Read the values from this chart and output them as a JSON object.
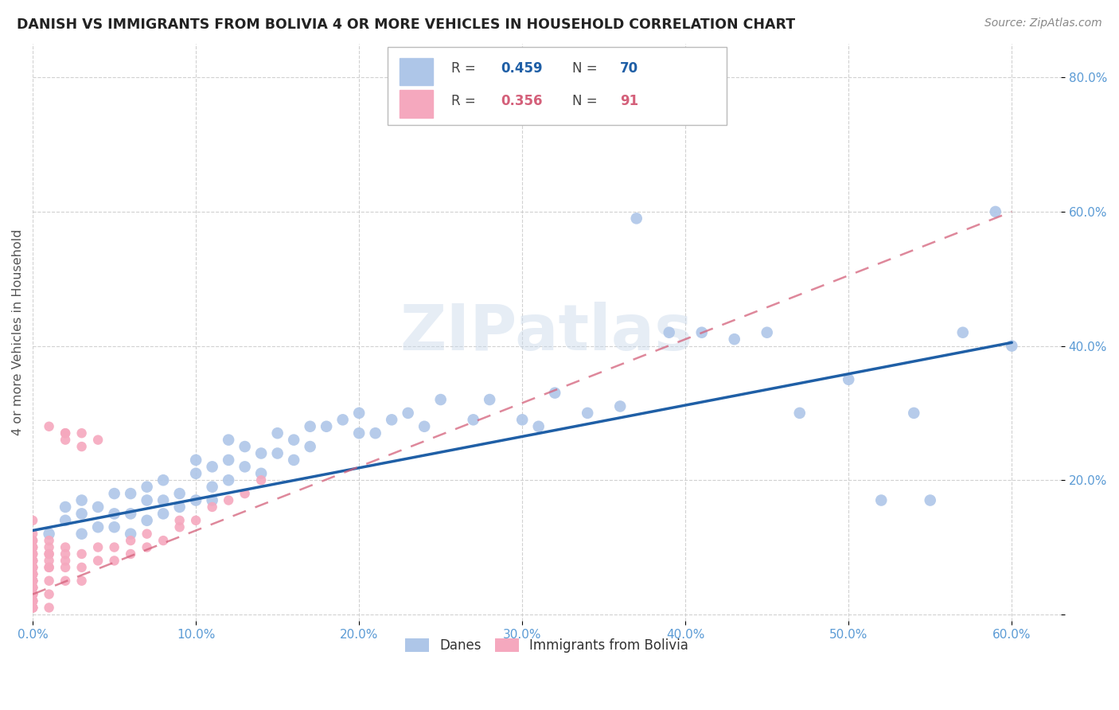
{
  "title": "DANISH VS IMMIGRANTS FROM BOLIVIA 4 OR MORE VEHICLES IN HOUSEHOLD CORRELATION CHART",
  "source": "Source: ZipAtlas.com",
  "ylabel": "4 or more Vehicles in Household",
  "xlim": [
    0.0,
    0.63
  ],
  "ylim": [
    -0.01,
    0.85
  ],
  "xticks": [
    0.0,
    0.1,
    0.2,
    0.3,
    0.4,
    0.5,
    0.6
  ],
  "yticks": [
    0.0,
    0.2,
    0.4,
    0.6,
    0.8
  ],
  "xtick_labels": [
    "0.0%",
    "10.0%",
    "20.0%",
    "30.0%",
    "40.0%",
    "50.0%",
    "60.0%"
  ],
  "ytick_labels": [
    "",
    "20.0%",
    "40.0%",
    "60.0%",
    "80.0%"
  ],
  "danish_color": "#aec6e8",
  "bolivia_color": "#f5a8be",
  "danish_line_color": "#1f5fa6",
  "bolivia_line_color": "#d4607a",
  "danish_R": 0.459,
  "danish_N": 70,
  "bolivia_R": 0.356,
  "bolivia_N": 91,
  "legend_label_danish": "Danes",
  "legend_label_bolivia": "Immigrants from Bolivia",
  "background_color": "#ffffff",
  "grid_color": "#cccccc",
  "watermark": "ZIPatlas",
  "danish_line_x0": 0.0,
  "danish_line_x1": 0.6,
  "danish_line_y0": 0.125,
  "danish_line_y1": 0.405,
  "bolivia_line_x0": 0.0,
  "bolivia_line_x1": 0.6,
  "bolivia_line_y0": 0.03,
  "bolivia_line_y1": 0.6,
  "danish_x": [
    0.01,
    0.02,
    0.02,
    0.03,
    0.03,
    0.03,
    0.04,
    0.04,
    0.05,
    0.05,
    0.05,
    0.06,
    0.06,
    0.06,
    0.07,
    0.07,
    0.07,
    0.08,
    0.08,
    0.08,
    0.09,
    0.09,
    0.1,
    0.1,
    0.1,
    0.11,
    0.11,
    0.11,
    0.12,
    0.12,
    0.12,
    0.13,
    0.13,
    0.14,
    0.14,
    0.15,
    0.15,
    0.16,
    0.16,
    0.17,
    0.17,
    0.18,
    0.19,
    0.2,
    0.2,
    0.21,
    0.22,
    0.23,
    0.24,
    0.25,
    0.27,
    0.28,
    0.3,
    0.31,
    0.32,
    0.34,
    0.36,
    0.37,
    0.39,
    0.41,
    0.43,
    0.45,
    0.47,
    0.5,
    0.52,
    0.54,
    0.55,
    0.57,
    0.59,
    0.6
  ],
  "danish_y": [
    0.12,
    0.14,
    0.16,
    0.12,
    0.15,
    0.17,
    0.13,
    0.16,
    0.13,
    0.15,
    0.18,
    0.12,
    0.15,
    0.18,
    0.14,
    0.17,
    0.19,
    0.15,
    0.17,
    0.2,
    0.16,
    0.18,
    0.17,
    0.21,
    0.23,
    0.17,
    0.19,
    0.22,
    0.2,
    0.23,
    0.26,
    0.22,
    0.25,
    0.21,
    0.24,
    0.24,
    0.27,
    0.23,
    0.26,
    0.25,
    0.28,
    0.28,
    0.29,
    0.27,
    0.3,
    0.27,
    0.29,
    0.3,
    0.28,
    0.32,
    0.29,
    0.32,
    0.29,
    0.28,
    0.33,
    0.3,
    0.31,
    0.59,
    0.42,
    0.42,
    0.41,
    0.42,
    0.3,
    0.35,
    0.17,
    0.3,
    0.17,
    0.42,
    0.6,
    0.4
  ],
  "bolivia_x": [
    0.0,
    0.0,
    0.0,
    0.0,
    0.0,
    0.0,
    0.0,
    0.0,
    0.0,
    0.0,
    0.0,
    0.0,
    0.0,
    0.0,
    0.0,
    0.0,
    0.0,
    0.0,
    0.0,
    0.0,
    0.0,
    0.0,
    0.0,
    0.0,
    0.0,
    0.0,
    0.0,
    0.0,
    0.0,
    0.0,
    0.0,
    0.0,
    0.0,
    0.0,
    0.0,
    0.0,
    0.0,
    0.0,
    0.0,
    0.0,
    0.0,
    0.0,
    0.0,
    0.0,
    0.0,
    0.0,
    0.0,
    0.0,
    0.0,
    0.0,
    0.01,
    0.01,
    0.01,
    0.01,
    0.01,
    0.01,
    0.01,
    0.01,
    0.01,
    0.01,
    0.01,
    0.02,
    0.02,
    0.02,
    0.02,
    0.02,
    0.02,
    0.02,
    0.02,
    0.03,
    0.03,
    0.03,
    0.03,
    0.03,
    0.04,
    0.04,
    0.04,
    0.05,
    0.05,
    0.06,
    0.06,
    0.07,
    0.07,
    0.08,
    0.09,
    0.09,
    0.1,
    0.11,
    0.12,
    0.13,
    0.14
  ],
  "bolivia_y": [
    0.01,
    0.01,
    0.01,
    0.01,
    0.01,
    0.02,
    0.02,
    0.02,
    0.02,
    0.02,
    0.03,
    0.03,
    0.03,
    0.03,
    0.03,
    0.04,
    0.04,
    0.04,
    0.04,
    0.04,
    0.05,
    0.05,
    0.05,
    0.05,
    0.05,
    0.05,
    0.06,
    0.06,
    0.06,
    0.06,
    0.06,
    0.07,
    0.07,
    0.07,
    0.07,
    0.07,
    0.08,
    0.08,
    0.08,
    0.08,
    0.09,
    0.09,
    0.09,
    0.1,
    0.1,
    0.1,
    0.11,
    0.11,
    0.12,
    0.14,
    0.01,
    0.03,
    0.05,
    0.07,
    0.07,
    0.08,
    0.09,
    0.09,
    0.1,
    0.11,
    0.28,
    0.27,
    0.05,
    0.07,
    0.08,
    0.09,
    0.1,
    0.27,
    0.26,
    0.05,
    0.07,
    0.09,
    0.25,
    0.27,
    0.08,
    0.1,
    0.26,
    0.08,
    0.1,
    0.09,
    0.11,
    0.1,
    0.12,
    0.11,
    0.13,
    0.14,
    0.14,
    0.16,
    0.17,
    0.18,
    0.2
  ]
}
